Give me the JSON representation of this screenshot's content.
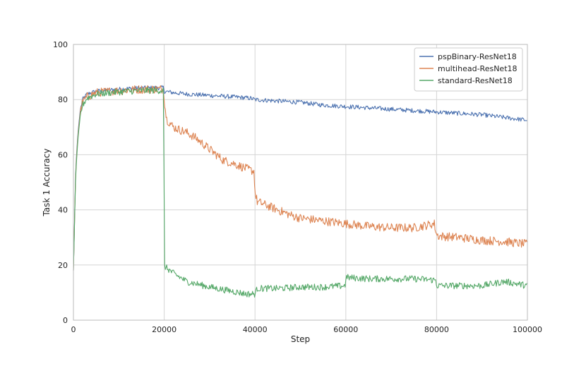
{
  "chart_data": {
    "type": "line",
    "title": "",
    "xlabel": "Step",
    "ylabel": "Task 1 Accuracy",
    "xlim": [
      0,
      100000
    ],
    "ylim": [
      0,
      100
    ],
    "xticks": [
      0,
      20000,
      40000,
      60000,
      80000,
      100000
    ],
    "xtick_labels": [
      "0",
      "20000",
      "40000",
      "60000",
      "80000",
      "100000"
    ],
    "yticks": [
      0,
      20,
      40,
      60,
      80,
      100
    ],
    "ytick_labels": [
      "0",
      "20",
      "40",
      "60",
      "80",
      "100"
    ],
    "grid": true,
    "legend_position": "top-right",
    "series": [
      {
        "name": "pspBinary-ResNet18",
        "color": "#4c72b0",
        "x": [
          0,
          500,
          1000,
          1500,
          2000,
          3000,
          5000,
          8000,
          12000,
          16000,
          19900,
          20000,
          22000,
          25000,
          30000,
          35000,
          39000,
          40000,
          45000,
          50000,
          55000,
          60000,
          65000,
          70000,
          75000,
          80000,
          85000,
          90000,
          95000,
          100000
        ],
        "y": [
          18,
          55,
          68,
          76,
          80,
          82,
          83,
          83.5,
          84,
          84.2,
          84.3,
          83,
          82.5,
          82,
          81.5,
          81,
          80.5,
          80,
          79.5,
          79,
          78,
          77.5,
          77,
          76.5,
          76,
          75.5,
          75,
          74.5,
          73.5,
          72.5
        ]
      },
      {
        "name": "multihead-ResNet18",
        "color": "#dd8452",
        "x": [
          0,
          500,
          1000,
          1500,
          2000,
          3000,
          5000,
          8000,
          12000,
          16000,
          19900,
          20000,
          20500,
          22000,
          25000,
          27000,
          30000,
          33000,
          35000,
          38000,
          39800,
          40000,
          40500,
          42000,
          45000,
          48000,
          50000,
          55000,
          60000,
          65000,
          70000,
          75000,
          79500,
          80000,
          80500,
          85000,
          90000,
          95000,
          100000
        ],
        "y": [
          18,
          54,
          67,
          75,
          79,
          81,
          82.5,
          83,
          83.5,
          83.8,
          83.8,
          80,
          73,
          70,
          68,
          66,
          62,
          58,
          57,
          55,
          54,
          46,
          43,
          42,
          40,
          38,
          37,
          36,
          35,
          34,
          33.5,
          33.5,
          35,
          31,
          30.5,
          30,
          29,
          28.5,
          27.5
        ]
      },
      {
        "name": "standard-ResNet18",
        "color": "#55a868",
        "x": [
          0,
          500,
          1000,
          1500,
          2000,
          3000,
          5000,
          8000,
          12000,
          16000,
          19900,
          20000,
          20100,
          22000,
          25000,
          30000,
          35000,
          38000,
          40000,
          40500,
          45000,
          50000,
          55000,
          59900,
          60000,
          65000,
          70000,
          75000,
          79900,
          80000,
          85000,
          90000,
          95000,
          100000
        ],
        "y": [
          18,
          53,
          66,
          74,
          78,
          80.5,
          82,
          82.5,
          83,
          83.3,
          83.3,
          20,
          19.5,
          17,
          14,
          12,
          10.5,
          9.5,
          9.5,
          11.5,
          11.5,
          12,
          12,
          12.5,
          15.5,
          15,
          15,
          15,
          14.5,
          12.5,
          12.5,
          12.5,
          14,
          12.5
        ]
      }
    ]
  }
}
